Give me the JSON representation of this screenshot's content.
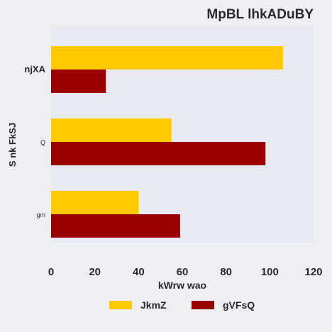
{
  "chart_data": {
    "type": "bar",
    "orientation": "horizontal",
    "title": "MpBL lhkADuBY",
    "xlabel": "kWrw wao",
    "ylabel": "S nk FkSJ",
    "categories": [
      "njXA",
      "Q",
      "gm"
    ],
    "series": [
      {
        "name": "JkmZ",
        "values": [
          106,
          55,
          40
        ],
        "color": "#ffc800"
      },
      {
        "name": "gVFsQ",
        "values": [
          25,
          98,
          59
        ],
        "color": "#990000"
      }
    ],
    "xlim": [
      0,
      120
    ],
    "xticks": [
      0,
      20,
      40,
      60,
      80,
      100,
      120
    ],
    "grid": false,
    "legend_position": "bottom"
  }
}
